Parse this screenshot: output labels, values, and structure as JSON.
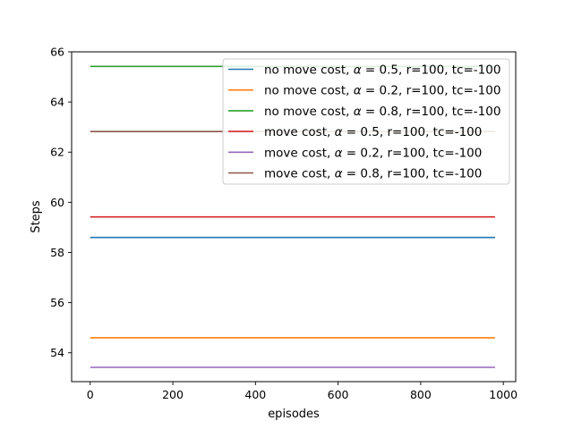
{
  "chart_data": {
    "type": "line",
    "xlabel": "episodes",
    "ylabel": "Steps",
    "xlim": [
      -45,
      1030
    ],
    "ylim": [
      52.85,
      66.0
    ],
    "xticks": [
      0,
      200,
      400,
      600,
      800,
      1000
    ],
    "xtick_labels": [
      "0",
      "200",
      "400",
      "600",
      "800",
      "1000"
    ],
    "yticks": [
      54,
      56,
      58,
      60,
      62,
      64,
      66
    ],
    "ytick_labels": [
      "54",
      "56",
      "58",
      "60",
      "62",
      "64",
      "66"
    ],
    "grid": false,
    "legend_position": "top-right",
    "x": [
      0,
      980
    ],
    "series": [
      {
        "name": "no move cost, α = 0.5, r=100, tc=-100",
        "name_parts": [
          "no move cost, ",
          "α = 0.5",
          ", r=100, tc=-100"
        ],
        "color": "#1f77b4",
        "values": [
          58.6,
          58.6
        ]
      },
      {
        "name": "no move cost, α = 0.2, r=100, tc=-100",
        "name_parts": [
          "no move cost, ",
          "α = 0.2",
          ", r=100, tc=-100"
        ],
        "color": "#ff7f0e",
        "values": [
          54.6,
          54.6
        ]
      },
      {
        "name": "no move cost, α = 0.8, r=100, tc=-100",
        "name_parts": [
          "no move cost, ",
          "α = 0.8",
          ", r=100, tc=-100"
        ],
        "color": "#2ca02c",
        "values": [
          65.42,
          65.42
        ]
      },
      {
        "name": "move cost, α = 0.5, r=100, tc=-100",
        "name_parts": [
          "move cost, ",
          "α = 0.5",
          ", r=100, tc=-100"
        ],
        "color": "#d62728",
        "values": [
          59.42,
          59.42
        ]
      },
      {
        "name": "move cost, α = 0.2, r=100, tc=-100",
        "name_parts": [
          "move cost, ",
          "α = 0.2",
          ", r=100, tc=-100"
        ],
        "color": "#9467bd",
        "values": [
          53.42,
          53.42
        ]
      },
      {
        "name": "move cost, α = 0.8, r=100, tc=-100",
        "name_parts": [
          "move cost, ",
          "α = 0.8",
          ", r=100, tc=-100"
        ],
        "color": "#8c564b",
        "values": [
          62.82,
          62.82
        ]
      }
    ]
  }
}
